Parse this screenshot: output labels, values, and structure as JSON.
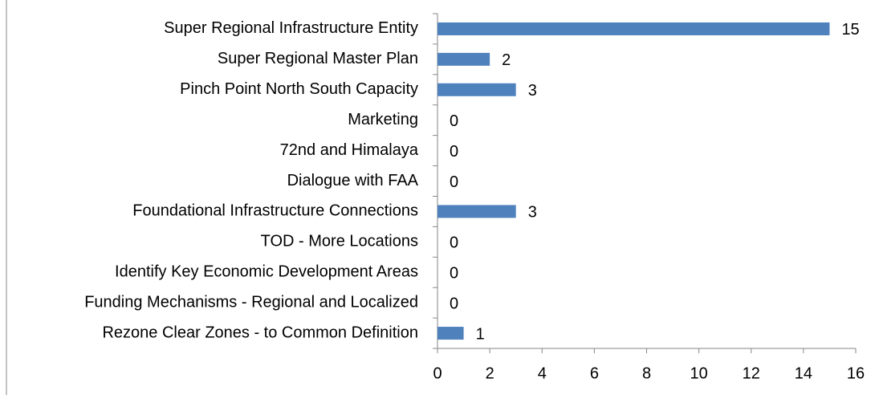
{
  "chart_data": {
    "type": "bar",
    "orientation": "horizontal",
    "categories": [
      "Super Regional Infrastructure Entity",
      "Super Regional Master Plan",
      "Pinch Point North South Capacity",
      "Marketing",
      "72nd and Himalaya",
      "Dialogue with FAA",
      "Foundational Infrastructure Connections",
      "TOD - More Locations",
      "Identify Key Economic Development Areas",
      "Funding Mechanisms - Regional and Localized",
      "Rezone Clear Zones - to Common Definition"
    ],
    "values": [
      15,
      2,
      3,
      0,
      0,
      0,
      3,
      0,
      0,
      0,
      1
    ],
    "color": "#4f81bd",
    "xlim": [
      0,
      16
    ],
    "xticks": [
      0,
      2,
      4,
      6,
      8,
      10,
      12,
      14,
      16
    ],
    "grid": false
  }
}
